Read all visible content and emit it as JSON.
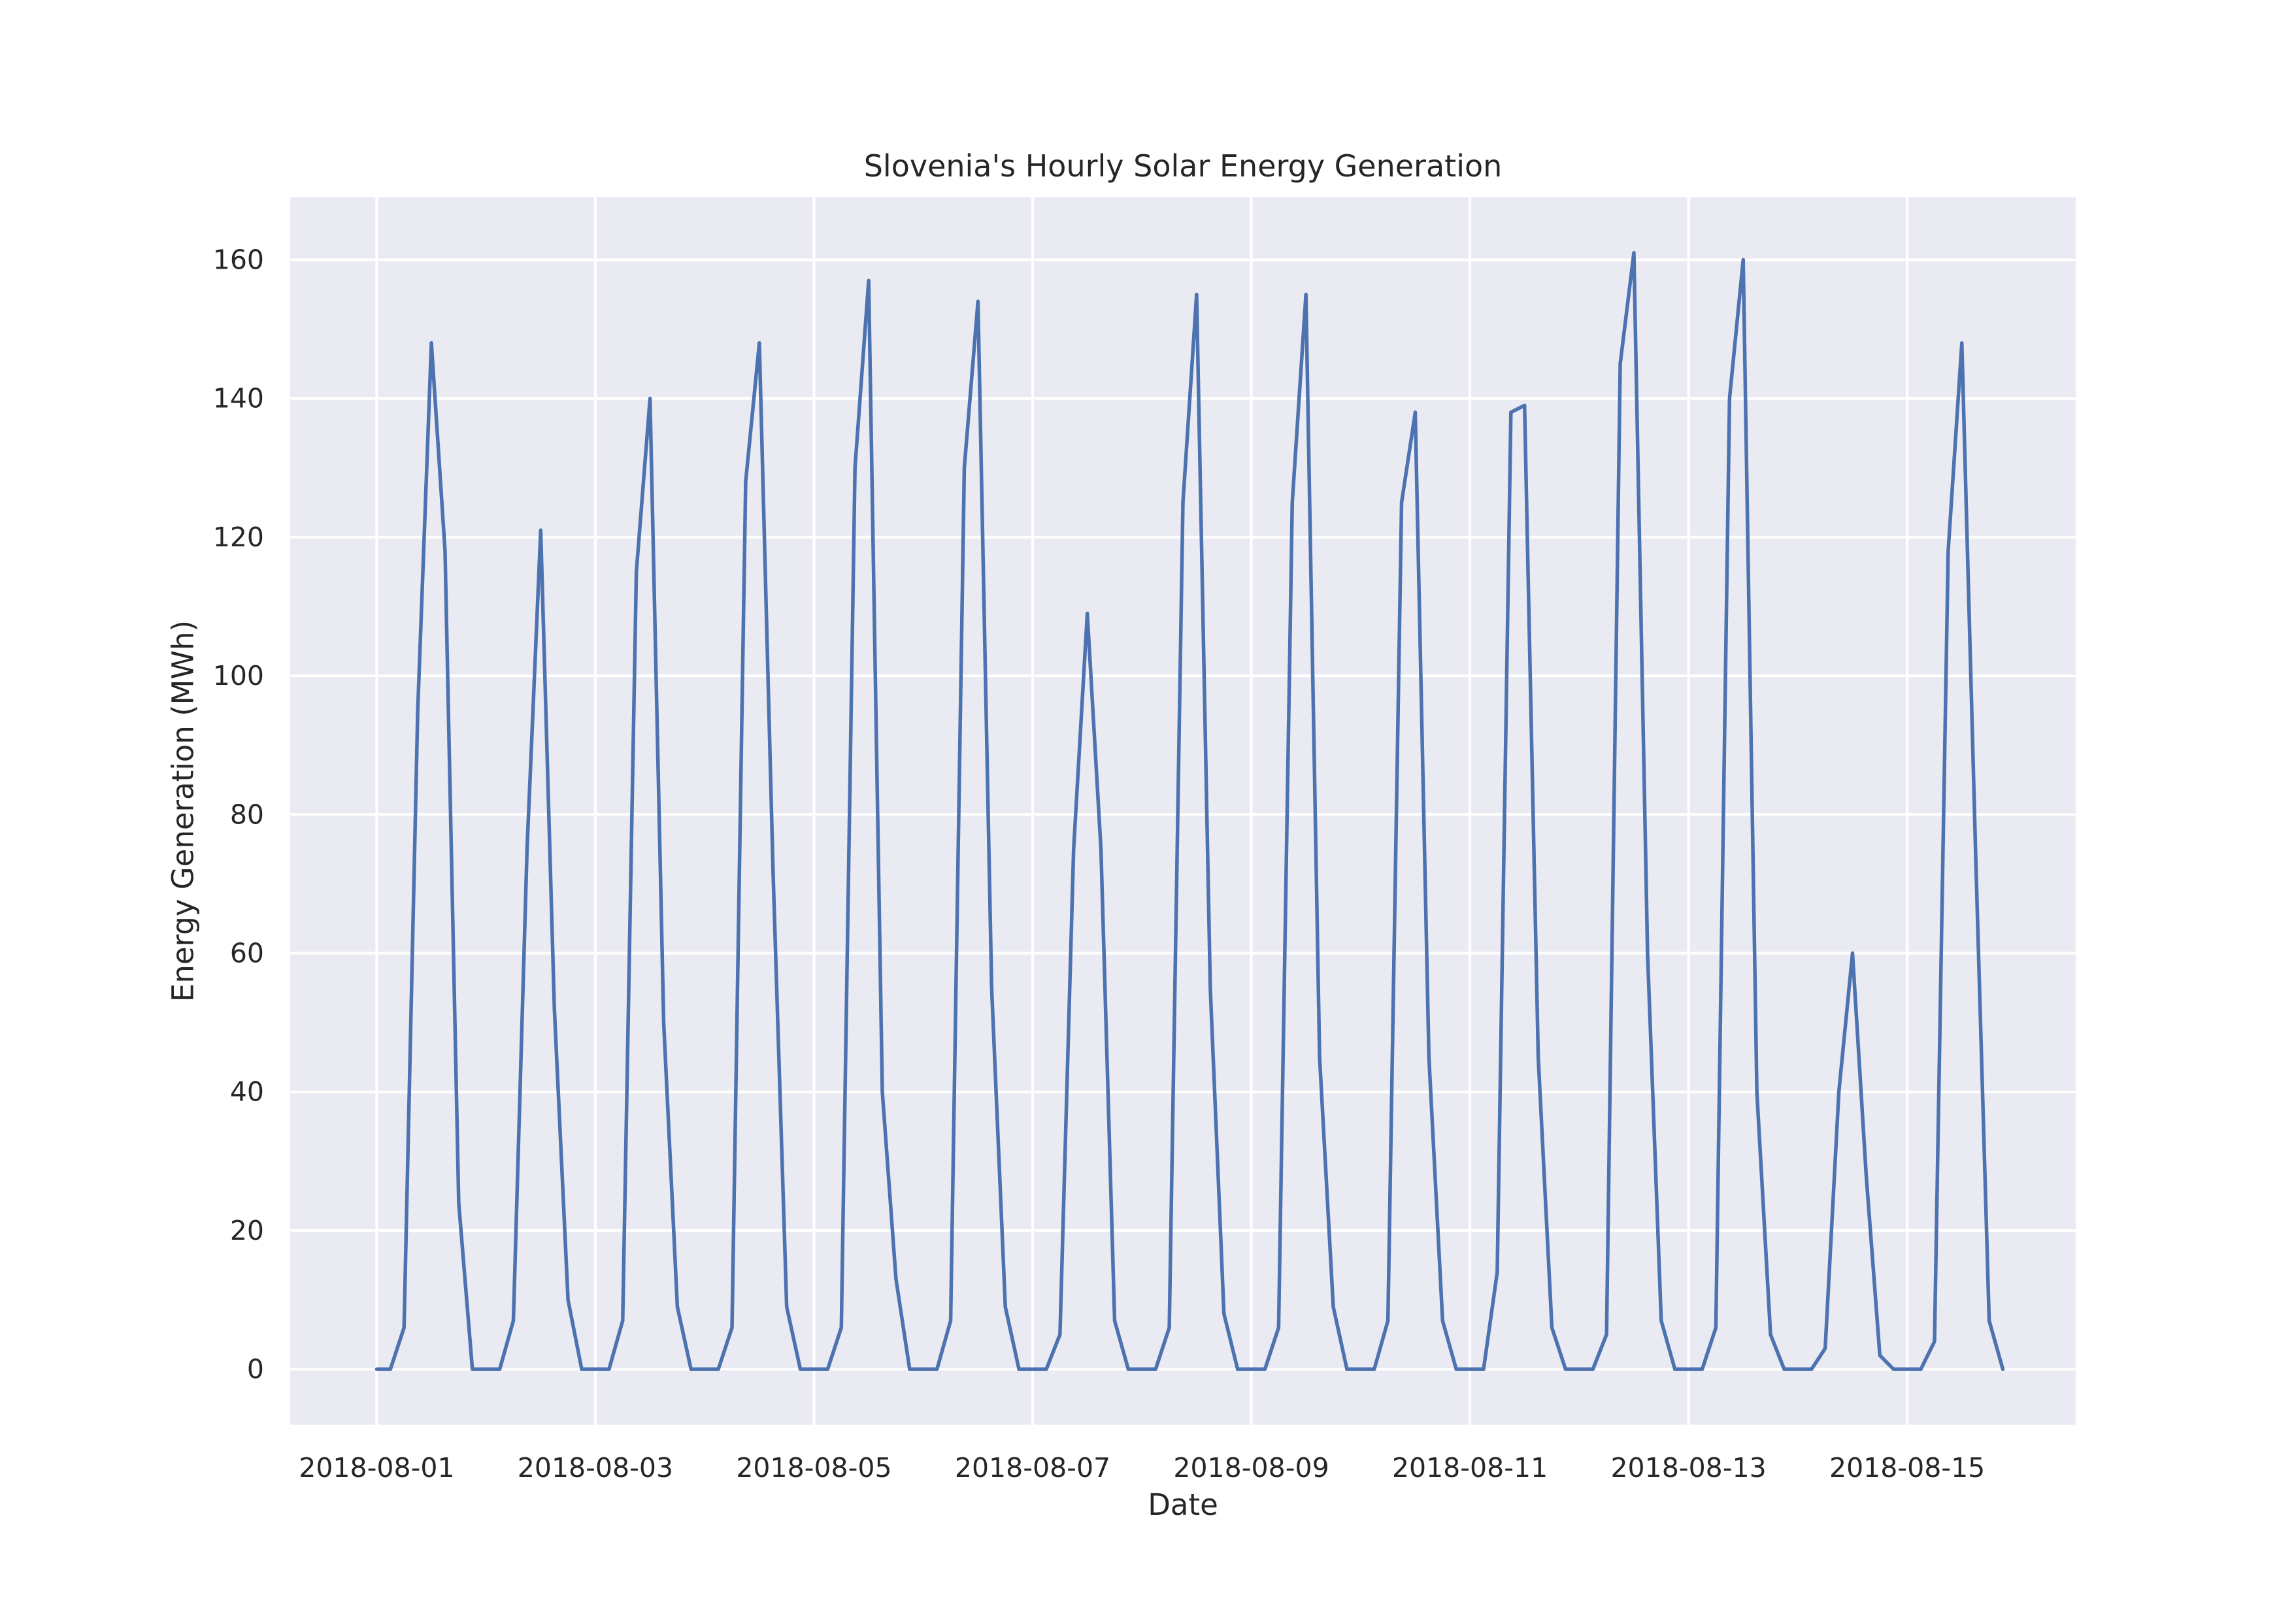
{
  "chart_data": {
    "type": "line",
    "title": "Slovenia's Hourly Solar Energy Generation",
    "xlabel": "Date",
    "ylabel": "Energy Generation (MWh)",
    "x_start": "2018-08-01",
    "x_step_hours": 3,
    "x_ticks": [
      "2018-08-01",
      "2018-08-03",
      "2018-08-05",
      "2018-08-07",
      "2018-08-09",
      "2018-08-11",
      "2018-08-13",
      "2018-08-15"
    ],
    "y_ticks": [
      0,
      20,
      40,
      60,
      80,
      100,
      120,
      140,
      160
    ],
    "ylim": [
      -8,
      169
    ],
    "xlim": [
      "2018-07-31 05:00",
      "2018-08-16 13:00"
    ],
    "grid": true,
    "colors": {
      "background": "#eaeaf2",
      "grid": "#ffffff",
      "line": "#4c72b0",
      "text": "#262626"
    },
    "series": [
      {
        "values": [
          0,
          0,
          6,
          95,
          148,
          118,
          24,
          0,
          0,
          0,
          7,
          75,
          121,
          52,
          10,
          0,
          0,
          0,
          7,
          115,
          140,
          50,
          9,
          0,
          0,
          0,
          6,
          128,
          148,
          72,
          9,
          0,
          0,
          0,
          6,
          130,
          157,
          40,
          13,
          0,
          0,
          0,
          7,
          130,
          154,
          55,
          9,
          0,
          0,
          0,
          5,
          75,
          109,
          75,
          7,
          0,
          0,
          0,
          6,
          125,
          155,
          55,
          8,
          0,
          0,
          0,
          6,
          125,
          155,
          45,
          9,
          0,
          0,
          0,
          7,
          125,
          138,
          45,
          7,
          0,
          0,
          0,
          14,
          138,
          139,
          45,
          6,
          0,
          0,
          0,
          5,
          145,
          161,
          60,
          7,
          0,
          0,
          0,
          6,
          140,
          160,
          40,
          5,
          0,
          0,
          0,
          3,
          40,
          60,
          28,
          2,
          0,
          0,
          0,
          4,
          118,
          148,
          75,
          7,
          0
        ]
      }
    ]
  }
}
